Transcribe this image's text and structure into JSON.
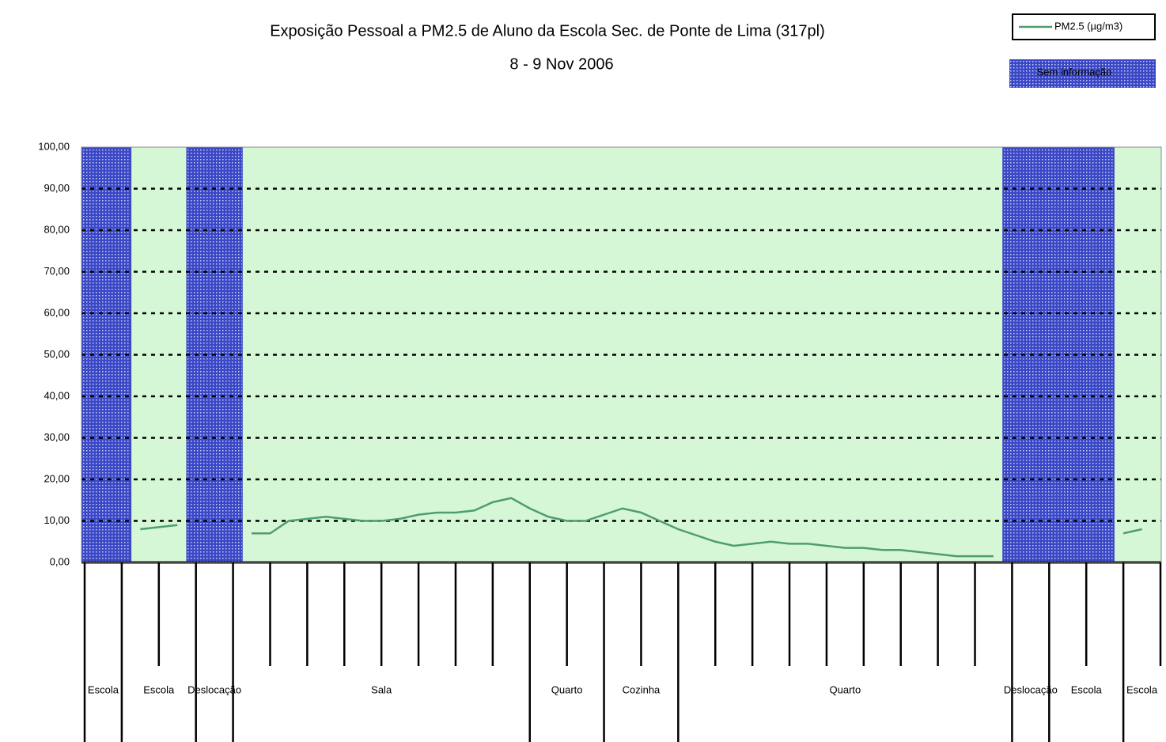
{
  "chart_data": {
    "type": "line",
    "title": "Exposição Pessoal a PM2.5 de Aluno da Escola Sec. de Ponte de Lima (317pl)",
    "subtitle": "8 - 9 Nov 2006",
    "series": [
      {
        "name": "PM2.5 (µg/m3)",
        "color": "#4f9d6f",
        "values": [
          null,
          null,
          null,
          8,
          8.5,
          9,
          null,
          null,
          null,
          7,
          7,
          10,
          10.5,
          11,
          10.5,
          10,
          10,
          10.5,
          11.5,
          12,
          12,
          12.5,
          14.5,
          15.5,
          13,
          11,
          10,
          10,
          11.5,
          13,
          12,
          10,
          8,
          6.5,
          5,
          4,
          4.5,
          5,
          4.5,
          4.5,
          4,
          3.5,
          3.5,
          3,
          3,
          2.5,
          2,
          1.5,
          1.5,
          1.5,
          null,
          null,
          null,
          null,
          null,
          null,
          7,
          8
        ]
      }
    ],
    "missing_label": "Sem informação",
    "missing_color": "#3a48c6",
    "background": "#d6f7d6",
    "periods": [
      "Escola",
      "Escola",
      "Deslocação",
      "Sala",
      "Quarto",
      "Cozinha",
      "Quarto",
      "Deslocação",
      "Escola",
      "Escola"
    ],
    "ylim": [
      0,
      100
    ],
    "yticks": [
      {
        "value": 0,
        "label": "0,00"
      },
      {
        "value": 10,
        "label": "10,00"
      },
      {
        "value": 20,
        "label": "20,00"
      },
      {
        "value": 30,
        "label": "30,00"
      },
      {
        "value": 40,
        "label": "40,00"
      },
      {
        "value": 50,
        "label": "50,00"
      },
      {
        "value": 60,
        "label": "60,00"
      },
      {
        "value": 70,
        "label": "70,00"
      },
      {
        "value": 80,
        "label": "80,00"
      },
      {
        "value": 90,
        "label": "90,00"
      },
      {
        "value": 100,
        "label": "100,00"
      }
    ],
    "grid": true
  }
}
